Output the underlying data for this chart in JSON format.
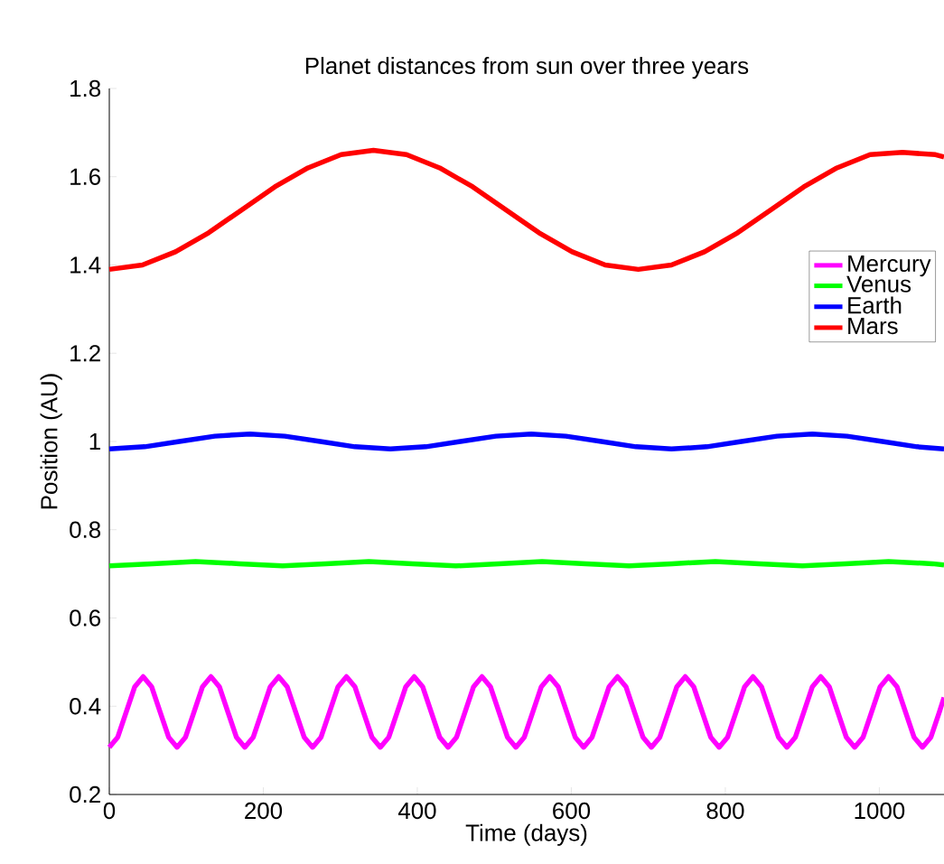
{
  "chart_data": {
    "type": "line",
    "title": "Planet distances from sun over three years",
    "xlabel": "Time (days)",
    "ylabel": "Position (AU)",
    "xlim": [
      0,
      1084
    ],
    "ylim": [
      0.2,
      1.8
    ],
    "xticks": [
      0,
      200,
      400,
      600,
      800,
      1000
    ],
    "yticks": [
      0.2,
      0.4,
      0.6,
      0.8,
      1,
      1.2,
      1.4,
      1.6,
      1.8
    ],
    "legend": "right",
    "grid": false,
    "series": [
      {
        "name": "Mercury",
        "color": "#ff00ff",
        "x": [
          0,
          11,
          22,
          33,
          44,
          55,
          66,
          77,
          88,
          99,
          110,
          121,
          132,
          143,
          154,
          165,
          176,
          187,
          198,
          209,
          220,
          231,
          242,
          253,
          264,
          275,
          286,
          297,
          308,
          319,
          330,
          341,
          352,
          363,
          374,
          385,
          396,
          407,
          418,
          429,
          440,
          451,
          462,
          473,
          484,
          495,
          506,
          517,
          528,
          539,
          550,
          561,
          572,
          583,
          594,
          605,
          616,
          627,
          638,
          649,
          660,
          671,
          682,
          693,
          704,
          715,
          726,
          737,
          748,
          759,
          770,
          781,
          792,
          803,
          814,
          825,
          836,
          847,
          858,
          869,
          880,
          891,
          902,
          913,
          924,
          935,
          946,
          957,
          968,
          979,
          990,
          1001,
          1012,
          1023,
          1034,
          1045,
          1056,
          1067,
          1078,
          1084
        ],
        "values": [
          0.307,
          0.33,
          0.387,
          0.444,
          0.467,
          0.444,
          0.387,
          0.33,
          0.307,
          0.33,
          0.387,
          0.444,
          0.467,
          0.444,
          0.387,
          0.33,
          0.307,
          0.33,
          0.387,
          0.444,
          0.467,
          0.444,
          0.387,
          0.33,
          0.307,
          0.33,
          0.387,
          0.444,
          0.467,
          0.444,
          0.387,
          0.33,
          0.307,
          0.33,
          0.387,
          0.444,
          0.467,
          0.444,
          0.387,
          0.33,
          0.307,
          0.33,
          0.387,
          0.444,
          0.467,
          0.444,
          0.387,
          0.33,
          0.307,
          0.33,
          0.387,
          0.444,
          0.467,
          0.444,
          0.387,
          0.33,
          0.307,
          0.33,
          0.387,
          0.444,
          0.467,
          0.444,
          0.387,
          0.33,
          0.307,
          0.33,
          0.387,
          0.444,
          0.467,
          0.444,
          0.387,
          0.33,
          0.307,
          0.33,
          0.387,
          0.444,
          0.467,
          0.444,
          0.387,
          0.33,
          0.307,
          0.33,
          0.387,
          0.444,
          0.467,
          0.444,
          0.387,
          0.33,
          0.307,
          0.33,
          0.387,
          0.444,
          0.467,
          0.444,
          0.387,
          0.33,
          0.307,
          0.33,
          0.387,
          0.42
        ]
      },
      {
        "name": "Venus",
        "color": "#00ff00",
        "x": [
          0,
          56,
          112,
          169,
          225,
          281,
          337,
          394,
          450,
          506,
          562,
          619,
          675,
          731,
          787,
          844,
          900,
          956,
          1012,
          1069,
          1084
        ],
        "values": [
          0.718,
          0.723,
          0.728,
          0.723,
          0.718,
          0.723,
          0.728,
          0.723,
          0.718,
          0.723,
          0.728,
          0.723,
          0.718,
          0.723,
          0.728,
          0.723,
          0.718,
          0.723,
          0.728,
          0.723,
          0.72
        ]
      },
      {
        "name": "Earth",
        "color": "#0000ff",
        "x": [
          0,
          46,
          91,
          137,
          183,
          228,
          274,
          319,
          365,
          411,
          456,
          502,
          548,
          593,
          639,
          684,
          730,
          776,
          821,
          867,
          913,
          958,
          1004,
          1049,
          1084
        ],
        "values": [
          0.983,
          0.988,
          1.0,
          1.012,
          1.017,
          1.012,
          1.0,
          0.988,
          0.983,
          0.988,
          1.0,
          1.012,
          1.017,
          1.012,
          1.0,
          0.988,
          0.983,
          0.988,
          1.0,
          1.012,
          1.017,
          1.012,
          1.0,
          0.988,
          0.983
        ]
      },
      {
        "name": "Mars",
        "color": "#ff0000",
        "x": [
          0,
          43,
          86,
          129,
          172,
          215,
          258,
          301,
          343,
          386,
          429,
          472,
          515,
          558,
          601,
          644,
          687,
          730,
          773,
          816,
          859,
          902,
          945,
          988,
          1030,
          1073,
          1084
        ],
        "values": [
          1.39,
          1.4,
          1.43,
          1.473,
          1.525,
          1.577,
          1.62,
          1.65,
          1.66,
          1.65,
          1.62,
          1.577,
          1.525,
          1.473,
          1.43,
          1.4,
          1.39,
          1.4,
          1.43,
          1.473,
          1.525,
          1.577,
          1.62,
          1.65,
          1.655,
          1.65,
          1.645
        ]
      }
    ]
  }
}
